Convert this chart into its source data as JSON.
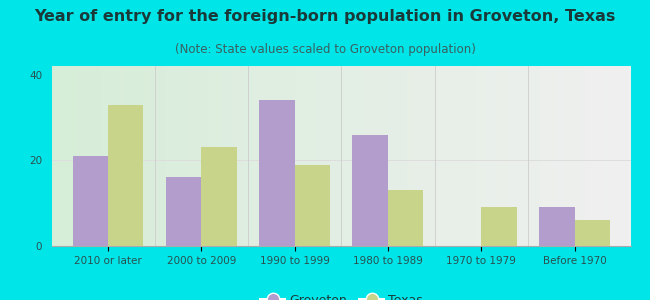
{
  "title": "Year of entry for the foreign-born population in Groveton, Texas",
  "subtitle": "(Note: State values scaled to Groveton population)",
  "categories": [
    "2010 or later",
    "2000 to 2009",
    "1990 to 1999",
    "1980 to 1989",
    "1970 to 1979",
    "Before 1970"
  ],
  "groveton_values": [
    21,
    16,
    34,
    26,
    0,
    9
  ],
  "texas_values": [
    33,
    23,
    19,
    13,
    9,
    6
  ],
  "groveton_color": "#b39dcc",
  "texas_color": "#c8d48a",
  "background_outer": "#00e5e8",
  "background_inner_left": "#d6edd8",
  "background_inner_right": "#f0f0f0",
  "title_color": "#1a3a3a",
  "subtitle_color": "#3a6060",
  "tick_color": "#2a5050",
  "ylim": [
    0,
    42
  ],
  "yticks": [
    0,
    20,
    40
  ],
  "bar_width": 0.38,
  "title_fontsize": 11.5,
  "subtitle_fontsize": 8.5,
  "tick_fontsize": 7.5,
  "legend_fontsize": 9
}
